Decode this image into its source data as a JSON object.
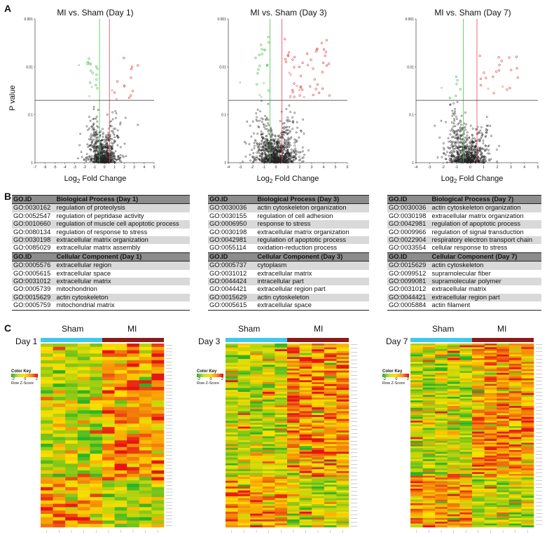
{
  "panels": {
    "a": "A",
    "b": "B",
    "c": "C"
  },
  "volcano": {
    "y_label": "P value",
    "x_label_prefix": "Log",
    "x_label_sub": "2",
    "x_label_suffix": " Fold Change"
  },
  "chart_data": [
    {
      "type": "scatter",
      "title": "MI vs. Sham (Day 1)",
      "xlabel": "Log2 Fold Change",
      "ylabel": "P value",
      "xlim": [
        -7,
        5
      ],
      "ylim_log": [
        1,
        0.001
      ],
      "x_ticks": [
        -7,
        -6,
        -5,
        -4,
        -3,
        -2,
        -1,
        0,
        1,
        2,
        3,
        4,
        5
      ],
      "y_ticks": [
        "0.001",
        "0.01",
        "0.1",
        "1"
      ],
      "fc_threshold": [
        -0.5,
        0.5
      ],
      "p_threshold": 0.05
    },
    {
      "type": "scatter",
      "title": "MI vs. Sham (Day 3)",
      "xlabel": "Log2 Fold Change",
      "ylabel": "P value",
      "xlim": [
        -4,
        6
      ],
      "ylim_log": [
        1,
        0.001
      ],
      "x_ticks": [
        -4,
        -3,
        -2,
        -1,
        0,
        1,
        2,
        3,
        4,
        5,
        6
      ],
      "y_ticks": [
        "0.001",
        "0.01",
        "0.1",
        "1"
      ],
      "fc_threshold": [
        -0.5,
        0.5
      ],
      "p_threshold": 0.05
    },
    {
      "type": "scatter",
      "title": "MI vs. Sham (Day 7)",
      "xlabel": "Log2 Fold Change",
      "ylabel": "P value",
      "xlim": [
        -4,
        5
      ],
      "ylim_log": [
        1,
        0.001
      ],
      "x_ticks": [
        -4,
        -3,
        -2,
        -1,
        0,
        1,
        2,
        3,
        4,
        5
      ],
      "y_ticks": [
        "0.001",
        "0.01",
        "0.1",
        "1"
      ],
      "fc_threshold": [
        -0.5,
        0.5
      ],
      "p_threshold": 0.05
    }
  ],
  "go_tables": [
    {
      "bp_header": [
        "GO.ID",
        "Biological Process (Day 1)"
      ],
      "bp": [
        [
          "GO:0030162",
          "regulation of proteolysis"
        ],
        [
          "GO:0052547",
          "regulation of peptidase activity"
        ],
        [
          "GO:0010660",
          "regulation of muscle cell apoptotic process"
        ],
        [
          "GO:0080134",
          "regulation of response to stress"
        ],
        [
          "GO:0030198",
          "extracellular matrix organization"
        ],
        [
          "GO:0085029",
          "extracellular matrix assembly"
        ]
      ],
      "cc_header": [
        "GO.ID",
        "Cellular Component (Day 1)"
      ],
      "cc": [
        [
          "GO:0005576",
          "extracellular region"
        ],
        [
          "GO:0005615",
          "extracellular space"
        ],
        [
          "GO:0031012",
          "extracellular matrix"
        ],
        [
          "GO:0005739",
          "mitochondrion"
        ],
        [
          "GO:0015629",
          "actin cytoskeleton"
        ],
        [
          "GO:0005759",
          "mitochondrial matrix"
        ]
      ]
    },
    {
      "bp_header": [
        "GO.ID",
        "Biological Process (Day 3)"
      ],
      "bp": [
        [
          "GO:0030036",
          "actin cytoskeleton organization"
        ],
        [
          "GO:0030155",
          "regulation of cell adhesion"
        ],
        [
          "GO:0006950",
          "response to stress"
        ],
        [
          "GO:0030198",
          "extracellular matrix organization"
        ],
        [
          "GO:0042981",
          "regulation of apoptotic process"
        ],
        [
          "GO:0055114",
          "oxidation-reduction process"
        ]
      ],
      "cc_header": [
        "GO.ID",
        "Cellular Component (Day 3)"
      ],
      "cc": [
        [
          "GO:0005737",
          "cytoplasm"
        ],
        [
          "GO:0031012",
          "extracellular matrix"
        ],
        [
          "GO:0044424",
          "intracellular part"
        ],
        [
          "GO:0044421",
          "extracellular region part"
        ],
        [
          "GO:0015629",
          "actin cytoskeleton"
        ],
        [
          "GO:0005615",
          "extracellular space"
        ]
      ]
    },
    {
      "bp_header": [
        "GO.ID",
        "Biological Process (Day 7)"
      ],
      "bp": [
        [
          "GO:0030036",
          "actin cytoskeleton organization"
        ],
        [
          "GO:0030198",
          "extracellular matrix organization"
        ],
        [
          "GO:0042981",
          "regulation of apoptotic process"
        ],
        [
          "GO:0009966",
          "regulation of signal transduction"
        ],
        [
          "GO:0022904",
          "respiratory electron transport chain"
        ],
        [
          "GO:0033554",
          "cellular response to stress"
        ]
      ],
      "cc_header": [
        "GO.ID",
        "Cellular Component (Day 7)"
      ],
      "cc": [
        [
          "GO:0015629",
          "actin cytoskeleton"
        ],
        [
          "GO:0099512",
          "supramolecular fiber"
        ],
        [
          "GO:0099081",
          "supramolecular polymer"
        ],
        [
          "GO:0031012",
          "extracellular matrix"
        ],
        [
          "GO:0044421",
          "extracellular region part"
        ],
        [
          "GO:0005884",
          "actin filament"
        ]
      ]
    }
  ],
  "heatmaps": {
    "group_labels": [
      "Sham",
      "MI"
    ],
    "days": [
      "Day 1",
      "Day 3",
      "Day 7"
    ],
    "color_key": {
      "title": "Color Key",
      "ticks": [
        "-2",
        "0",
        "2"
      ],
      "subtitle": "Row Z-Score"
    },
    "colors": {
      "sham_bar": "#3ec8ee",
      "mi_bar": "#8b1a1a"
    }
  },
  "colors": {
    "up": "#e0484f",
    "down": "#4fc04f",
    "neutral": "#222222"
  }
}
